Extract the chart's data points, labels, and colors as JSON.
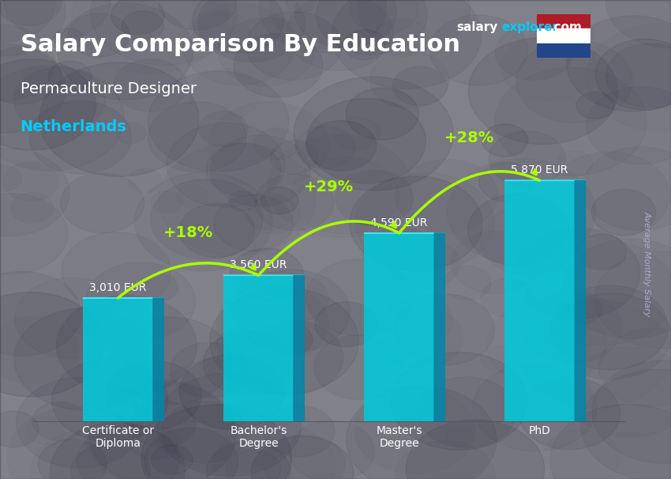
{
  "title_salary": "Salary Comparison By Education",
  "subtitle_job": "Permaculture Designer",
  "subtitle_country": "Netherlands",
  "ylabel": "Average Monthly Salary",
  "categories": [
    "Certificate or\nDiploma",
    "Bachelor's\nDegree",
    "Master's\nDegree",
    "PhD"
  ],
  "values": [
    3010,
    3560,
    4590,
    5870
  ],
  "value_labels": [
    "3,010 EUR",
    "3,560 EUR",
    "4,590 EUR",
    "5,870 EUR"
  ],
  "pct_labels": [
    "+18%",
    "+29%",
    "+28%"
  ],
  "bar_color_top": "#00d4e8",
  "bar_color_mid": "#00aacc",
  "bar_color_bottom": "#0088aa",
  "bar_color_side": "#007799",
  "bg_color": "#3a3a4a",
  "title_color": "#ffffff",
  "subtitle_job_color": "#ffffff",
  "subtitle_country_color": "#00ccff",
  "value_label_color": "#ffffff",
  "pct_label_color": "#aaff00",
  "tick_label_color": "#ffffff",
  "watermark": "salaryexplorer.com",
  "bar_width": 0.5,
  "ylim": [
    0,
    7000
  ]
}
